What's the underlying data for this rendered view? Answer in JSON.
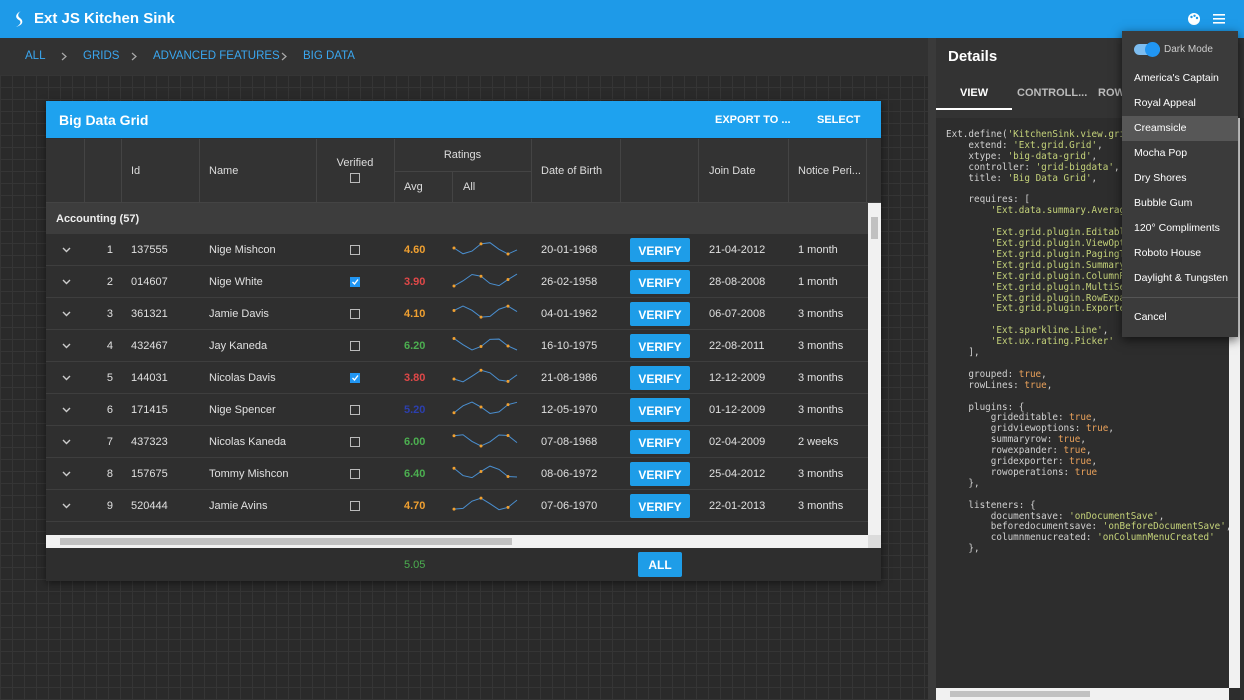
{
  "header": {
    "title": "Ext JS Kitchen Sink"
  },
  "breadcrumb": [
    "ALL",
    "GRIDS",
    "ADVANCED FEATURES",
    "BIG DATA"
  ],
  "grid": {
    "title": "Big Data Grid",
    "tools": [
      "EXPORT TO ...",
      "SELECT"
    ],
    "columns": {
      "id": "Id",
      "name": "Name",
      "verified": "Verified",
      "ratings": "Ratings",
      "avg": "Avg",
      "all": "All",
      "dob": "Date of Birth",
      "join": "Join Date",
      "notice": "Notice Peri..."
    },
    "group": "Accounting (57)",
    "button": "VERIFY",
    "rows": [
      {
        "n": 1,
        "id": "137555",
        "name": "Nige Mishcon",
        "verified": false,
        "avg": "4.60",
        "avg_color": "#f0a030",
        "dob": "20-01-1968",
        "join": "21-04-2012",
        "notice": "1 month"
      },
      {
        "n": 2,
        "id": "014607",
        "name": "Nige White",
        "verified": true,
        "avg": "3.90",
        "avg_color": "#e04848",
        "dob": "26-02-1958",
        "join": "28-08-2008",
        "notice": "1 month"
      },
      {
        "n": 3,
        "id": "361321",
        "name": "Jamie Davis",
        "verified": false,
        "avg": "4.10",
        "avg_color": "#f0a030",
        "dob": "04-01-1962",
        "join": "06-07-2008",
        "notice": "3 months"
      },
      {
        "n": 4,
        "id": "432467",
        "name": "Jay Kaneda",
        "verified": false,
        "avg": "6.20",
        "avg_color": "#4caf50",
        "dob": "16-10-1975",
        "join": "22-08-2011",
        "notice": "3 months"
      },
      {
        "n": 5,
        "id": "144031",
        "name": "Nicolas Davis",
        "verified": true,
        "avg": "3.80",
        "avg_color": "#e04848",
        "dob": "21-08-1986",
        "join": "12-12-2009",
        "notice": "3 months"
      },
      {
        "n": 6,
        "id": "171415",
        "name": "Nige Spencer",
        "verified": false,
        "avg": "5.20",
        "avg_color": "#2c3fae",
        "dob": "12-05-1970",
        "join": "01-12-2009",
        "notice": "3 months"
      },
      {
        "n": 7,
        "id": "437323",
        "name": "Nicolas Kaneda",
        "verified": false,
        "avg": "6.00",
        "avg_color": "#4caf50",
        "dob": "07-08-1968",
        "join": "02-04-2009",
        "notice": "2 weeks"
      },
      {
        "n": 8,
        "id": "157675",
        "name": "Tommy Mishcon",
        "verified": false,
        "avg": "6.40",
        "avg_color": "#4caf50",
        "dob": "08-06-1972",
        "join": "25-04-2012",
        "notice": "3 months"
      },
      {
        "n": 9,
        "id": "520444",
        "name": "Jamie Avins",
        "verified": false,
        "avg": "4.70",
        "avg_color": "#f0a030",
        "dob": "07-06-1970",
        "join": "22-01-2013",
        "notice": "3 months"
      }
    ],
    "summary_avg": "5.05",
    "footer_button": "ALL"
  },
  "details": {
    "title": "Details",
    "tabs": [
      "VIEW",
      "CONTROLL...",
      "ROW"
    ],
    "code": [
      [
        "Ext.define('KitchenSink.view.grid.",
        "    extend: 'Ext.grid.Grid',",
        "    xtype: 'big-data-grid',",
        "    controller: 'grid-bigdata',",
        "    title: 'Big Data Grid',"
      ],
      [
        "    requires: [",
        "        'Ext.data.summary.Average',"
      ],
      [
        "        'Ext.grid.plugin.Editable',",
        "        'Ext.grid.plugin.ViewOptio",
        "        'Ext.grid.plugin.PagingToo",
        "        'Ext.grid.plugin.SummaryRo",
        "        'Ext.grid.plugin.ColumnRes",
        "        'Ext.grid.plugin.MultiSele",
        "        'Ext.grid.plugin.RowExpande",
        "        'Ext.grid.plugin.Exporter'"
      ],
      [
        "        'Ext.sparkline.Line',",
        "        'Ext.ux.rating.Picker'",
        "    ],"
      ],
      [
        "    grouped: true,",
        "    rowLines: true,"
      ],
      [
        "    plugins: {",
        "        grideditable: true,",
        "        gridviewoptions: true,",
        "        summaryrow: true,",
        "        rowexpander: true,",
        "        gridexporter: true,",
        "        rowoperations: true",
        "    },"
      ],
      [
        "    listeners: {",
        "        documentsave: 'onDocumentSave',",
        "        beforedocumentsave: 'onBeforeDocumentSave',",
        "        columnmenucreated: 'onColumnMenuCreated'",
        "    },"
      ]
    ]
  },
  "menu": {
    "dark_mode": "Dark Mode",
    "items": [
      "America's Captain",
      "Royal Appeal",
      "Creamsicle",
      "Mocha Pop",
      "Dry Shores",
      "Bubble Gum",
      "120° Compliments",
      "Roboto House",
      "Daylight & Tungsten"
    ],
    "selected": 2,
    "cancel": "Cancel"
  }
}
